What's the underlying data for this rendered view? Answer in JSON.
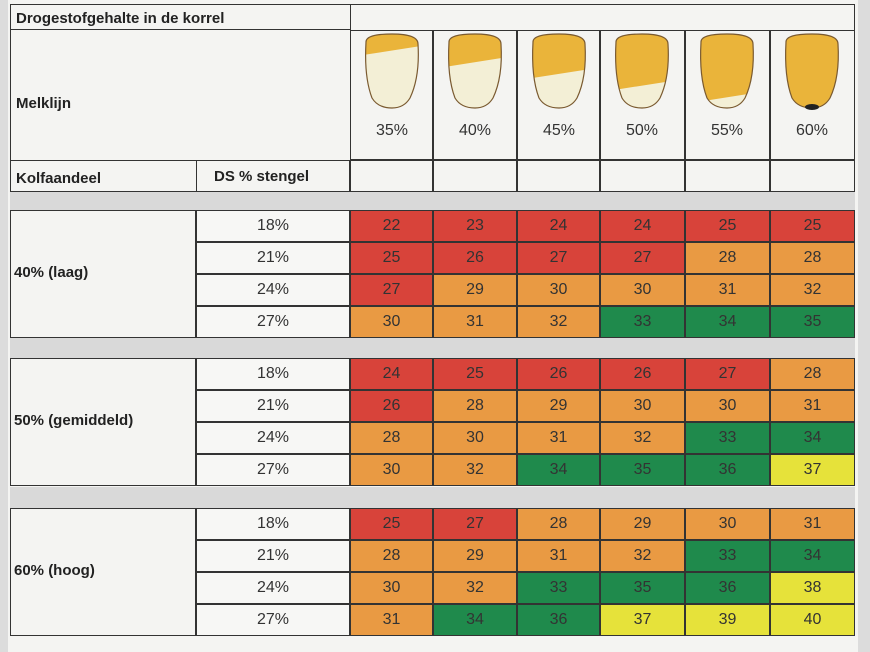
{
  "header": {
    "title": "Drogestofgehalte in de korrel",
    "melklijn_label": "Melklijn",
    "kolfaandeel_label": "Kolfaandeel",
    "ds_stengel_label": "DS % stengel"
  },
  "columns": [
    {
      "label": "35%",
      "kernel_fill": 0.25
    },
    {
      "label": "40%",
      "kernel_fill": 0.4
    },
    {
      "label": "45%",
      "kernel_fill": 0.55
    },
    {
      "label": "50%",
      "kernel_fill": 0.7
    },
    {
      "label": "55%",
      "kernel_fill": 0.85
    },
    {
      "label": "60%",
      "kernel_fill": 1.0
    }
  ],
  "colors": {
    "R": "#d8433a",
    "O": "#e99a43",
    "G": "#1f8a4c",
    "Y": "#e6e23a"
  },
  "groups": [
    {
      "label": "40% (laag)",
      "rows": [
        {
          "ds": "18%",
          "values": [
            "22",
            "23",
            "24",
            "24",
            "25",
            "25"
          ],
          "colors": [
            "R",
            "R",
            "R",
            "R",
            "R",
            "R"
          ]
        },
        {
          "ds": "21%",
          "values": [
            "25",
            "26",
            "27",
            "27",
            "28",
            "28"
          ],
          "colors": [
            "R",
            "R",
            "R",
            "R",
            "O",
            "O"
          ]
        },
        {
          "ds": "24%",
          "values": [
            "27",
            "29",
            "30",
            "30",
            "31",
            "32"
          ],
          "colors": [
            "R",
            "O",
            "O",
            "O",
            "O",
            "O"
          ]
        },
        {
          "ds": "27%",
          "values": [
            "30",
            "31",
            "32",
            "33",
            "34",
            "35"
          ],
          "colors": [
            "O",
            "O",
            "O",
            "G",
            "G",
            "G"
          ]
        }
      ]
    },
    {
      "label": "50% (gemiddeld)",
      "rows": [
        {
          "ds": "18%",
          "values": [
            "24",
            "25",
            "26",
            "26",
            "27",
            "28"
          ],
          "colors": [
            "R",
            "R",
            "R",
            "R",
            "R",
            "O"
          ]
        },
        {
          "ds": "21%",
          "values": [
            "26",
            "28",
            "29",
            "30",
            "30",
            "31"
          ],
          "colors": [
            "R",
            "O",
            "O",
            "O",
            "O",
            "O"
          ]
        },
        {
          "ds": "24%",
          "values": [
            "28",
            "30",
            "31",
            "32",
            "33",
            "34"
          ],
          "colors": [
            "O",
            "O",
            "O",
            "O",
            "G",
            "G"
          ]
        },
        {
          "ds": "27%",
          "values": [
            "30",
            "32",
            "34",
            "35",
            "36",
            "37"
          ],
          "colors": [
            "O",
            "O",
            "G",
            "G",
            "G",
            "Y"
          ]
        }
      ]
    },
    {
      "label": "60% (hoog)",
      "rows": [
        {
          "ds": "18%",
          "values": [
            "25",
            "27",
            "28",
            "29",
            "30",
            "31"
          ],
          "colors": [
            "R",
            "R",
            "O",
            "O",
            "O",
            "O"
          ]
        },
        {
          "ds": "21%",
          "values": [
            "28",
            "29",
            "31",
            "32",
            "33",
            "34"
          ],
          "colors": [
            "O",
            "O",
            "O",
            "O",
            "G",
            "G"
          ]
        },
        {
          "ds": "24%",
          "values": [
            "30",
            "32",
            "33",
            "35",
            "36",
            "38"
          ],
          "colors": [
            "O",
            "O",
            "G",
            "G",
            "G",
            "Y"
          ]
        },
        {
          "ds": "27%",
          "values": [
            "31",
            "34",
            "36",
            "37",
            "39",
            "40"
          ],
          "colors": [
            "O",
            "G",
            "G",
            "Y",
            "Y",
            "Y"
          ]
        }
      ]
    }
  ]
}
